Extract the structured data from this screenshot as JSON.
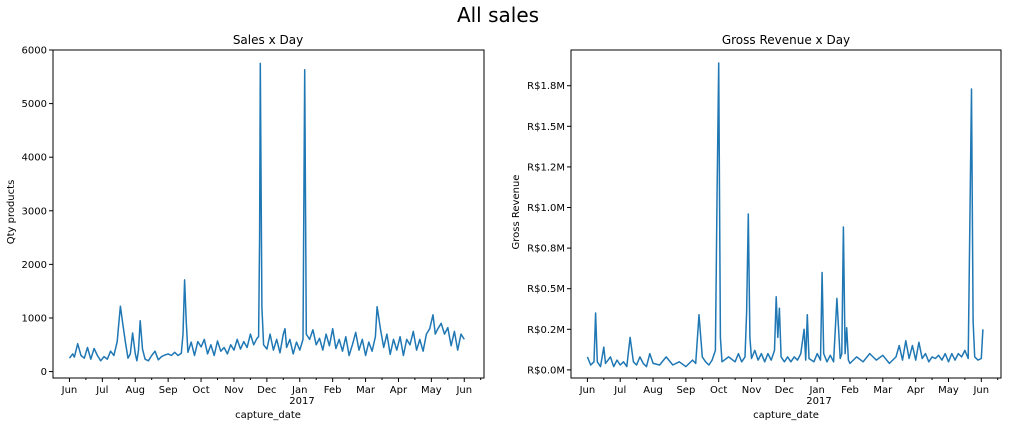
{
  "figure": {
    "title": "All sales"
  },
  "colors": {
    "line": "#1f77b4",
    "axis": "#000000"
  },
  "chart_data": [
    {
      "type": "line",
      "title": "Sales x Day",
      "xlabel": "capture_date",
      "ylabel": "Qty products",
      "x_ticks": [
        "Jun",
        "Jul",
        "Aug",
        "Sep",
        "Oct",
        "Nov",
        "Dec",
        "Jan",
        "Feb",
        "Mar",
        "Apr",
        "May",
        "Jun"
      ],
      "x_year_label": "2017",
      "y_ticks": [
        0,
        1000,
        2000,
        3000,
        4000,
        5000,
        6000
      ],
      "y_tick_labels": [
        "0",
        "1000",
        "2000",
        "3000",
        "4000",
        "5000",
        "6000"
      ],
      "xlim_months": [
        -0.5,
        12.6
      ],
      "ylim": [
        -120,
        6000
      ],
      "series": [
        {
          "values": [
            [
              0.0,
              250
            ],
            [
              0.1,
              330
            ],
            [
              0.15,
              270
            ],
            [
              0.25,
              520
            ],
            [
              0.35,
              300
            ],
            [
              0.45,
              250
            ],
            [
              0.55,
              450
            ],
            [
              0.65,
              230
            ],
            [
              0.75,
              430
            ],
            [
              0.85,
              300
            ],
            [
              0.95,
              200
            ],
            [
              1.05,
              280
            ],
            [
              1.15,
              230
            ],
            [
              1.25,
              380
            ],
            [
              1.35,
              300
            ],
            [
              1.45,
              560
            ],
            [
              1.5,
              900
            ],
            [
              1.55,
              1220
            ],
            [
              1.62,
              900
            ],
            [
              1.7,
              550
            ],
            [
              1.78,
              250
            ],
            [
              1.85,
              330
            ],
            [
              1.92,
              720
            ],
            [
              2.0,
              330
            ],
            [
              2.05,
              200
            ],
            [
              2.1,
              400
            ],
            [
              2.15,
              950
            ],
            [
              2.22,
              420
            ],
            [
              2.3,
              230
            ],
            [
              2.4,
              200
            ],
            [
              2.5,
              300
            ],
            [
              2.6,
              380
            ],
            [
              2.7,
              220
            ],
            [
              2.8,
              280
            ],
            [
              2.9,
              310
            ],
            [
              3.0,
              330
            ],
            [
              3.1,
              300
            ],
            [
              3.2,
              360
            ],
            [
              3.3,
              300
            ],
            [
              3.4,
              340
            ],
            [
              3.45,
              700
            ],
            [
              3.5,
              1710
            ],
            [
              3.55,
              950
            ],
            [
              3.6,
              360
            ],
            [
              3.7,
              550
            ],
            [
              3.8,
              300
            ],
            [
              3.9,
              560
            ],
            [
              4.0,
              460
            ],
            [
              4.1,
              600
            ],
            [
              4.2,
              330
            ],
            [
              4.3,
              500
            ],
            [
              4.4,
              300
            ],
            [
              4.5,
              570
            ],
            [
              4.6,
              380
            ],
            [
              4.7,
              450
            ],
            [
              4.8,
              330
            ],
            [
              4.9,
              500
            ],
            [
              5.0,
              400
            ],
            [
              5.1,
              600
            ],
            [
              5.2,
              420
            ],
            [
              5.3,
              560
            ],
            [
              5.4,
              450
            ],
            [
              5.5,
              700
            ],
            [
              5.6,
              500
            ],
            [
              5.7,
              620
            ],
            [
              5.75,
              650
            ],
            [
              5.78,
              2500
            ],
            [
              5.8,
              5750
            ],
            [
              5.85,
              1200
            ],
            [
              5.9,
              500
            ],
            [
              6.0,
              420
            ],
            [
              6.1,
              700
            ],
            [
              6.2,
              400
            ],
            [
              6.3,
              600
            ],
            [
              6.4,
              350
            ],
            [
              6.5,
              700
            ],
            [
              6.55,
              800
            ],
            [
              6.6,
              450
            ],
            [
              6.7,
              600
            ],
            [
              6.8,
              330
            ],
            [
              6.9,
              550
            ],
            [
              7.0,
              400
            ],
            [
              7.1,
              600
            ],
            [
              7.15,
              5630
            ],
            [
              7.2,
              700
            ],
            [
              7.3,
              600
            ],
            [
              7.4,
              780
            ],
            [
              7.5,
              500
            ],
            [
              7.6,
              620
            ],
            [
              7.7,
              400
            ],
            [
              7.8,
              700
            ],
            [
              7.9,
              480
            ],
            [
              8.0,
              800
            ],
            [
              8.1,
              430
            ],
            [
              8.2,
              600
            ],
            [
              8.3,
              380
            ],
            [
              8.4,
              650
            ],
            [
              8.5,
              300
            ],
            [
              8.6,
              500
            ],
            [
              8.7,
              730
            ],
            [
              8.8,
              400
            ],
            [
              8.9,
              600
            ],
            [
              9.0,
              300
            ],
            [
              9.1,
              550
            ],
            [
              9.2,
              380
            ],
            [
              9.3,
              650
            ],
            [
              9.35,
              1210
            ],
            [
              9.45,
              800
            ],
            [
              9.55,
              450
            ],
            [
              9.65,
              700
            ],
            [
              9.75,
              320
            ],
            [
              9.85,
              600
            ],
            [
              9.95,
              400
            ],
            [
              10.05,
              650
            ],
            [
              10.15,
              300
            ],
            [
              10.25,
              600
            ],
            [
              10.35,
              500
            ],
            [
              10.45,
              750
            ],
            [
              10.55,
              400
            ],
            [
              10.65,
              600
            ],
            [
              10.75,
              380
            ],
            [
              10.85,
              700
            ],
            [
              10.95,
              800
            ],
            [
              11.05,
              1060
            ],
            [
              11.12,
              700
            ],
            [
              11.2,
              800
            ],
            [
              11.3,
              900
            ],
            [
              11.4,
              700
            ],
            [
              11.5,
              820
            ],
            [
              11.6,
              480
            ],
            [
              11.7,
              750
            ],
            [
              11.8,
              400
            ],
            [
              11.9,
              700
            ],
            [
              12.0,
              600
            ]
          ]
        }
      ]
    },
    {
      "type": "line",
      "title": "Gross Revenue x Day",
      "xlabel": "capture_date",
      "ylabel": "Gross Revenue",
      "x_ticks": [
        "Jun",
        "Jul",
        "Aug",
        "Sep",
        "Oct",
        "Nov",
        "Dec",
        "Jan",
        "Feb",
        "Mar",
        "Apr",
        "May",
        "Jun"
      ],
      "x_year_label": "2017",
      "y_ticks": [
        0,
        0.25,
        0.5,
        0.75,
        1.0,
        1.25,
        1.5,
        1.75
      ],
      "y_tick_labels": [
        "R$0.0M",
        "R$0.2M",
        "R$0.5M",
        "R$0.8M",
        "R$1.0M",
        "R$1.2M",
        "R$1.5M",
        "R$1.8M"
      ],
      "xlim_months": [
        -0.5,
        12.6
      ],
      "ylim": [
        -0.05,
        1.97
      ],
      "series": [
        {
          "values": [
            [
              0.0,
              0.08
            ],
            [
              0.1,
              0.03
            ],
            [
              0.2,
              0.05
            ],
            [
              0.25,
              0.35
            ],
            [
              0.3,
              0.05
            ],
            [
              0.4,
              0.02
            ],
            [
              0.5,
              0.14
            ],
            [
              0.55,
              0.04
            ],
            [
              0.7,
              0.08
            ],
            [
              0.8,
              0.02
            ],
            [
              0.9,
              0.06
            ],
            [
              1.0,
              0.03
            ],
            [
              1.1,
              0.05
            ],
            [
              1.2,
              0.02
            ],
            [
              1.3,
              0.2
            ],
            [
              1.4,
              0.05
            ],
            [
              1.5,
              0.03
            ],
            [
              1.6,
              0.08
            ],
            [
              1.7,
              0.04
            ],
            [
              1.8,
              0.02
            ],
            [
              1.9,
              0.1
            ],
            [
              2.0,
              0.04
            ],
            [
              2.2,
              0.03
            ],
            [
              2.4,
              0.08
            ],
            [
              2.6,
              0.03
            ],
            [
              2.8,
              0.05
            ],
            [
              3.0,
              0.02
            ],
            [
              3.2,
              0.06
            ],
            [
              3.3,
              0.04
            ],
            [
              3.4,
              0.34
            ],
            [
              3.5,
              0.08
            ],
            [
              3.6,
              0.05
            ],
            [
              3.7,
              0.03
            ],
            [
              3.8,
              0.06
            ],
            [
              3.9,
              0.12
            ],
            [
              3.95,
              1.1
            ],
            [
              4.0,
              1.89
            ],
            [
              4.05,
              0.2
            ],
            [
              4.1,
              0.05
            ],
            [
              4.3,
              0.08
            ],
            [
              4.5,
              0.05
            ],
            [
              4.6,
              0.1
            ],
            [
              4.7,
              0.05
            ],
            [
              4.8,
              0.08
            ],
            [
              4.85,
              0.35
            ],
            [
              4.9,
              0.96
            ],
            [
              4.95,
              0.2
            ],
            [
              5.0,
              0.07
            ],
            [
              5.1,
              0.12
            ],
            [
              5.2,
              0.06
            ],
            [
              5.3,
              0.1
            ],
            [
              5.4,
              0.05
            ],
            [
              5.5,
              0.1
            ],
            [
              5.6,
              0.06
            ],
            [
              5.7,
              0.12
            ],
            [
              5.75,
              0.45
            ],
            [
              5.8,
              0.2
            ],
            [
              5.85,
              0.38
            ],
            [
              5.9,
              0.08
            ],
            [
              6.0,
              0.05
            ],
            [
              6.1,
              0.08
            ],
            [
              6.2,
              0.05
            ],
            [
              6.3,
              0.08
            ],
            [
              6.4,
              0.06
            ],
            [
              6.5,
              0.1
            ],
            [
              6.6,
              0.25
            ],
            [
              6.65,
              0.06
            ],
            [
              6.7,
              0.34
            ],
            [
              6.75,
              0.07
            ],
            [
              6.9,
              0.05
            ],
            [
              7.0,
              0.1
            ],
            [
              7.1,
              0.06
            ],
            [
              7.15,
              0.6
            ],
            [
              7.2,
              0.1
            ],
            [
              7.3,
              0.05
            ],
            [
              7.4,
              0.09
            ],
            [
              7.5,
              0.05
            ],
            [
              7.6,
              0.44
            ],
            [
              7.7,
              0.07
            ],
            [
              7.75,
              0.1
            ],
            [
              7.8,
              0.88
            ],
            [
              7.85,
              0.1
            ],
            [
              7.9,
              0.26
            ],
            [
              7.95,
              0.06
            ],
            [
              8.0,
              0.04
            ],
            [
              8.2,
              0.08
            ],
            [
              8.4,
              0.05
            ],
            [
              8.6,
              0.1
            ],
            [
              8.8,
              0.06
            ],
            [
              9.0,
              0.09
            ],
            [
              9.2,
              0.04
            ],
            [
              9.4,
              0.08
            ],
            [
              9.5,
              0.15
            ],
            [
              9.6,
              0.06
            ],
            [
              9.7,
              0.18
            ],
            [
              9.8,
              0.07
            ],
            [
              9.9,
              0.15
            ],
            [
              10.0,
              0.06
            ],
            [
              10.1,
              0.17
            ],
            [
              10.2,
              0.07
            ],
            [
              10.3,
              0.1
            ],
            [
              10.4,
              0.05
            ],
            [
              10.5,
              0.08
            ],
            [
              10.6,
              0.07
            ],
            [
              10.7,
              0.09
            ],
            [
              10.8,
              0.06
            ],
            [
              10.9,
              0.1
            ],
            [
              11.0,
              0.05
            ],
            [
              11.1,
              0.1
            ],
            [
              11.2,
              0.06
            ],
            [
              11.3,
              0.1
            ],
            [
              11.4,
              0.08
            ],
            [
              11.5,
              0.12
            ],
            [
              11.6,
              0.07
            ],
            [
              11.7,
              1.73
            ],
            [
              11.75,
              0.3
            ],
            [
              11.8,
              0.08
            ],
            [
              11.9,
              0.06
            ],
            [
              12.0,
              0.07
            ],
            [
              12.05,
              0.25
            ]
          ]
        }
      ]
    }
  ]
}
